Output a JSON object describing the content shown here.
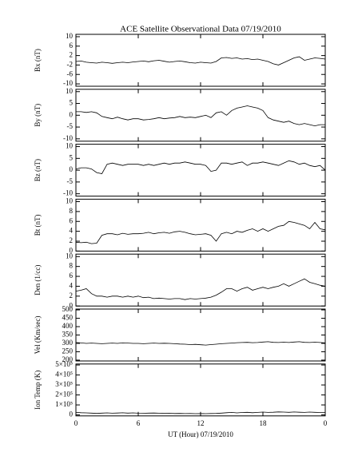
{
  "chart_data": [
    {
      "type": "line",
      "title": "ACE Satellite Observational Data  07/19/2010",
      "ylabel": "Bx (nT)",
      "x": [
        0,
        0.5,
        1,
        1.5,
        2,
        2.5,
        3,
        3.5,
        4,
        4.5,
        5,
        5.5,
        6,
        6.5,
        7,
        7.5,
        8,
        8.5,
        9,
        9.5,
        10,
        10.5,
        11,
        11.5,
        12,
        12.5,
        13,
        13.5,
        14,
        14.5,
        15,
        15.5,
        16,
        16.5,
        17,
        17.5,
        18,
        18.5,
        19,
        19.5,
        20,
        20.5,
        21,
        21.5,
        22,
        22.5,
        23,
        23.5,
        24
      ],
      "values": [
        -0.5,
        -0.3,
        -0.8,
        -1,
        -1.2,
        -0.8,
        -1,
        -1.3,
        -1,
        -0.8,
        -1,
        -0.7,
        -0.5,
        -0.3,
        -0.6,
        -0.2,
        0,
        -0.4,
        -0.8,
        -0.5,
        -0.3,
        -0.6,
        -1,
        -1.2,
        -0.8,
        -1,
        -1.2,
        -0.5,
        1,
        1.2,
        0.8,
        1,
        0.5,
        0.7,
        0.3,
        0.5,
        0,
        -0.5,
        -1.5,
        -2,
        -1,
        0,
        1,
        1.5,
        0,
        0.5,
        1,
        0.8,
        0.5
      ],
      "xlim": [
        0,
        24
      ],
      "ylim": [
        -11,
        11
      ],
      "yticks": [
        10,
        6,
        2,
        -2,
        -6,
        -10
      ],
      "color": "#000000"
    },
    {
      "type": "line",
      "ylabel": "By (nT)",
      "x": [
        0,
        0.5,
        1,
        1.5,
        2,
        2.5,
        3,
        3.5,
        4,
        4.5,
        5,
        5.5,
        6,
        6.5,
        7,
        7.5,
        8,
        8.5,
        9,
        9.5,
        10,
        10.5,
        11,
        11.5,
        12,
        12.5,
        13,
        13.5,
        14,
        14.5,
        15,
        15.5,
        16,
        16.5,
        17,
        17.5,
        18,
        18.5,
        19,
        19.5,
        20,
        20.5,
        21,
        21.5,
        22,
        22.5,
        23,
        23.5,
        24
      ],
      "values": [
        1.5,
        1.5,
        1.2,
        1.5,
        1,
        -0.5,
        -1,
        -1.5,
        -0.8,
        -1.5,
        -2,
        -1.5,
        -1.5,
        -2,
        -1.8,
        -1.5,
        -1,
        -1.5,
        -1.2,
        -1,
        -0.5,
        -1,
        -0.8,
        -1,
        -0.5,
        0,
        -1,
        1,
        1.5,
        0,
        2,
        3,
        3.5,
        4,
        3.5,
        3,
        2,
        -1,
        -2,
        -2.5,
        -3,
        -2.5,
        -3.5,
        -4,
        -3.5,
        -4,
        -4.5,
        -4,
        -4
      ],
      "xlim": [
        0,
        24
      ],
      "ylim": [
        -11,
        11
      ],
      "yticks": [
        10,
        5,
        0,
        -5,
        -10
      ],
      "color": "#000000"
    },
    {
      "type": "line",
      "ylabel": "Bz (nT)",
      "x": [
        0,
        0.5,
        1,
        1.5,
        2,
        2.5,
        3,
        3.5,
        4,
        4.5,
        5,
        5.5,
        6,
        6.5,
        7,
        7.5,
        8,
        8.5,
        9,
        9.5,
        10,
        10.5,
        11,
        11.5,
        12,
        12.5,
        13,
        13.5,
        14,
        14.5,
        15,
        15.5,
        16,
        16.5,
        17,
        17.5,
        18,
        18.5,
        19,
        19.5,
        20,
        20.5,
        21,
        21.5,
        22,
        22.5,
        23,
        23.5,
        24
      ],
      "values": [
        0.5,
        1,
        1,
        0.5,
        -1,
        -1.5,
        2.5,
        3,
        2.5,
        2,
        2.5,
        2.5,
        2.5,
        2,
        2.5,
        2,
        2.5,
        3,
        2.5,
        3,
        3,
        3.5,
        3,
        2.5,
        2.5,
        2,
        -0.5,
        0,
        3,
        3,
        2.5,
        3,
        3.5,
        2,
        3,
        3,
        3.5,
        3,
        2.5,
        2,
        3,
        4,
        3.5,
        2.5,
        3,
        2,
        1.5,
        2,
        0
      ],
      "xlim": [
        0,
        24
      ],
      "ylim": [
        -11,
        11
      ],
      "yticks": [
        10,
        5,
        0,
        -5,
        -10
      ],
      "color": "#000000"
    },
    {
      "type": "line",
      "ylabel": "Bt (nT)",
      "x": [
        0,
        0.5,
        1,
        1.5,
        2,
        2.5,
        3,
        3.5,
        4,
        4.5,
        5,
        5.5,
        6,
        6.5,
        7,
        7.5,
        8,
        8.5,
        9,
        9.5,
        10,
        10.5,
        11,
        11.5,
        12,
        12.5,
        13,
        13.5,
        14,
        14.5,
        15,
        15.5,
        16,
        16.5,
        17,
        17.5,
        18,
        18.5,
        19,
        19.5,
        20,
        20.5,
        21,
        21.5,
        22,
        22.5,
        23,
        23.5,
        24
      ],
      "values": [
        1.8,
        1.7,
        1.8,
        1.5,
        1.6,
        3.2,
        3.5,
        3.5,
        3.3,
        3.6,
        3.4,
        3.5,
        3.5,
        3.6,
        3.8,
        3.5,
        3.7,
        3.8,
        3.6,
        3.9,
        4,
        3.8,
        3.5,
        3.3,
        3.4,
        3.5,
        3.2,
        2,
        3.5,
        3.8,
        3.5,
        4,
        3.8,
        4.2,
        4.5,
        4,
        4.5,
        4,
        4.5,
        5,
        5.2,
        6,
        5.8,
        5.5,
        5.2,
        4.5,
        5.8,
        4.5,
        4.3
      ],
      "xlim": [
        0,
        24
      ],
      "ylim": [
        0,
        10.5
      ],
      "yticks": [
        10,
        8,
        6,
        4,
        2,
        0
      ],
      "color": "#000000"
    },
    {
      "type": "line",
      "ylabel": "Den (1/cc)",
      "x": [
        0,
        0.5,
        1,
        1.5,
        2,
        2.5,
        3,
        3.5,
        4,
        4.5,
        5,
        5.5,
        6,
        6.5,
        7,
        7.5,
        8,
        8.5,
        9,
        9.5,
        10,
        10.5,
        11,
        11.5,
        12,
        12.5,
        13,
        13.5,
        14,
        14.5,
        15,
        15.5,
        16,
        16.5,
        17,
        17.5,
        18,
        18.5,
        19,
        19.5,
        20,
        20.5,
        21,
        21.5,
        22,
        22.5,
        23,
        23.5,
        24
      ],
      "values": [
        3,
        3.2,
        3.5,
        2.5,
        2,
        2,
        1.8,
        2,
        2,
        1.8,
        2,
        1.8,
        2,
        1.7,
        1.8,
        1.5,
        1.6,
        1.5,
        1.4,
        1.5,
        1.5,
        1.3,
        1.5,
        1.4,
        1.5,
        1.6,
        1.8,
        2.2,
        2.8,
        3.5,
        3.5,
        3,
        3.5,
        3.8,
        3.2,
        3.5,
        3.8,
        3.5,
        3.8,
        4,
        4.5,
        4,
        4.5,
        5,
        5.5,
        4.8,
        4.5,
        4.2,
        4
      ],
      "xlim": [
        0,
        24
      ],
      "ylim": [
        0,
        10.5
      ],
      "yticks": [
        10,
        8,
        6,
        4,
        2,
        0
      ],
      "color": "#000000"
    },
    {
      "type": "line",
      "ylabel": "Vel (Km/sec)",
      "x": [
        0,
        0.5,
        1,
        1.5,
        2,
        2.5,
        3,
        3.5,
        4,
        4.5,
        5,
        5.5,
        6,
        6.5,
        7,
        7.5,
        8,
        8.5,
        9,
        9.5,
        10,
        10.5,
        11,
        11.5,
        12,
        12.5,
        13,
        13.5,
        14,
        14.5,
        15,
        15.5,
        16,
        16.5,
        17,
        17.5,
        18,
        18.5,
        19,
        19.5,
        20,
        20.5,
        21,
        21.5,
        22,
        22.5,
        23,
        23.5,
        24
      ],
      "values": [
        305,
        303,
        300,
        302,
        300,
        298,
        300,
        302,
        300,
        303,
        302,
        300,
        300,
        298,
        300,
        302,
        300,
        301,
        300,
        298,
        296,
        295,
        293,
        294,
        292,
        290,
        293,
        295,
        298,
        300,
        302,
        304,
        305,
        306,
        304,
        305,
        308,
        310,
        306,
        305,
        307,
        305,
        308,
        310,
        306,
        305,
        307,
        305,
        303
      ],
      "xlim": [
        0,
        24
      ],
      "ylim": [
        195,
        505
      ],
      "yticks": [
        500,
        450,
        400,
        350,
        300,
        250,
        200
      ],
      "color": "#000000"
    },
    {
      "type": "line",
      "ylabel": "Ion Temp (K)",
      "xlabel": "UT (Hour)  07/19/2010",
      "x": [
        0,
        0.5,
        1,
        1.5,
        2,
        2.5,
        3,
        3.5,
        4,
        4.5,
        5,
        5.5,
        6,
        6.5,
        7,
        7.5,
        8,
        8.5,
        9,
        9.5,
        10,
        10.5,
        11,
        11.5,
        12,
        12.5,
        13,
        13.5,
        14,
        14.5,
        15,
        15.5,
        16,
        16.5,
        17,
        17.5,
        18,
        18.5,
        19,
        19.5,
        20,
        20.5,
        21,
        21.5,
        22,
        22.5,
        23,
        23.5,
        24
      ],
      "values": [
        25000,
        22000,
        20000,
        18000,
        15000,
        18000,
        20000,
        17000,
        19000,
        21000,
        18000,
        20000,
        17000,
        16000,
        18000,
        19000,
        17000,
        15000,
        16000,
        14000,
        15000,
        13000,
        14000,
        12000,
        13000,
        12000,
        14000,
        15000,
        18000,
        22000,
        25000,
        20000,
        24000,
        26000,
        22000,
        25000,
        28000,
        25000,
        27000,
        30000,
        28000,
        26000,
        29000,
        27000,
        25000,
        28000,
        26000,
        24000,
        25000
      ],
      "xlim": [
        0,
        24
      ],
      "ylim": [
        -10000,
        510000
      ],
      "yticks": [
        {
          "value": 500000,
          "label": "5×10⁵"
        },
        {
          "value": 400000,
          "label": "4×10⁵"
        },
        {
          "value": 300000,
          "label": "3×10⁵"
        },
        {
          "value": 200000,
          "label": "2×10⁵"
        },
        {
          "value": 100000,
          "label": "1×10⁵"
        },
        0
      ],
      "xticks": [
        0,
        6,
        12,
        18,
        {
          "value": 24,
          "label": "0"
        }
      ],
      "color": "#000000"
    }
  ]
}
